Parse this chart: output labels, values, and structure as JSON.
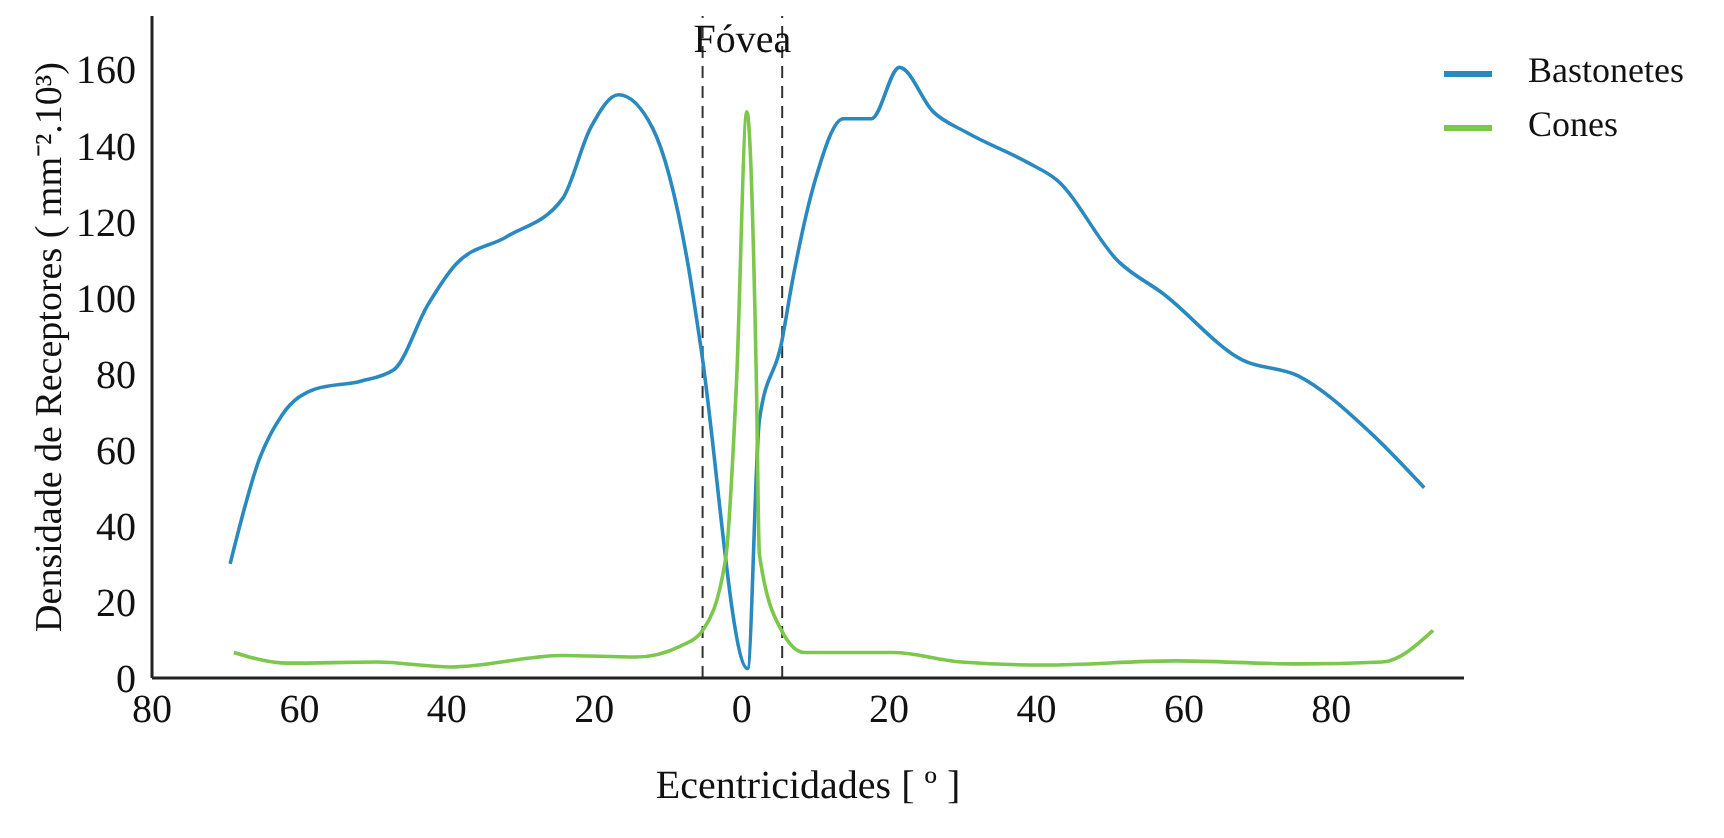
{
  "chart_data": {
    "type": "line",
    "xlabel": "Ecentricidades [ º ]",
    "ylabel": "Densidade de Receptores ( mm⁻².10³)",
    "xlim": [
      -80,
      98
    ],
    "ylim": [
      0,
      174
    ],
    "xticks": [
      {
        "value": -80,
        "label": "80"
      },
      {
        "value": -60,
        "label": "60"
      },
      {
        "value": -40,
        "label": "40"
      },
      {
        "value": -20,
        "label": "20"
      },
      0,
      20,
      40,
      60,
      80
    ],
    "yticks": [
      0,
      20,
      40,
      60,
      80,
      100,
      120,
      140,
      160
    ],
    "grid": false,
    "legend": "top right",
    "marker": "none",
    "line_style": "solid",
    "ref_lines": [
      {
        "axis": "x",
        "value": -5.3,
        "line_style": "dashed",
        "color": "#333333"
      },
      {
        "axis": "x",
        "value": 5.5,
        "line_style": "dashed",
        "color": "#333333"
      }
    ],
    "annotations": [
      "Fóvea"
    ],
    "series": [
      {
        "name": "Bastonetes",
        "color": "#2a8ac0",
        "x": [
          -69.4,
          -65.4,
          -62.4,
          -57.8,
          -51.7,
          -47.2,
          -42.6,
          -38.8,
          -31.9,
          -24.3,
          -20.5,
          -16.7,
          -12.1,
          -7.2,
          -5.6,
          0.8,
          2.4,
          5.4,
          6.9,
          10,
          13.8,
          17.6,
          21.4,
          26,
          30.6,
          38.9,
          42.7,
          51.1,
          57.2,
          67.9,
          75.5,
          85.4,
          92.6
        ],
        "values": [
          30,
          57.7,
          69,
          76,
          78,
          81,
          98,
          108.7,
          116,
          126,
          144.6,
          153.3,
          144.6,
          107.8,
          87.8,
          2.5,
          67.7,
          88,
          104.5,
          131,
          147,
          147,
          160.5,
          148.8,
          143.3,
          135.4,
          131,
          109.5,
          101,
          83.6,
          79.4,
          64.3,
          50
        ]
      },
      {
        "name": "Cones",
        "color": "#7cc84c",
        "x": [
          -68.9,
          -61.6,
          -49.5,
          -39.5,
          -24.3,
          -14.4,
          -8.3,
          -5.3,
          -2.2,
          -0.7,
          0.7,
          2,
          2.4,
          5.4,
          8.5,
          20.6,
          29.8,
          41.2,
          58.7,
          75.5,
          86.9,
          93.8
        ],
        "values": [
          6.7,
          3.9,
          4.2,
          2.9,
          5.9,
          5.5,
          8.4,
          12.5,
          31,
          77.7,
          148.8,
          77.7,
          32.6,
          12.5,
          6.7,
          6.7,
          4.2,
          3.4,
          4.5,
          3.7,
          4.2,
          12.5
        ]
      }
    ]
  }
}
